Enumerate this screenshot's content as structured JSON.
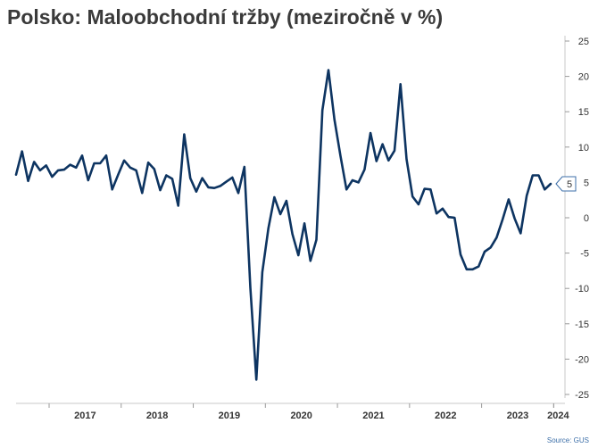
{
  "chart_data": {
    "type": "line",
    "title": "Polsko: Maloobchodní tržby (meziročně v %)",
    "source": "Source: GUS",
    "y_ticks": [
      25,
      20,
      15,
      10,
      5,
      0,
      -5,
      -10,
      -15,
      -20,
      -25
    ],
    "ylim": [
      -25,
      25
    ],
    "x_labels": [
      "2017",
      "2018",
      "2019",
      "2020",
      "2021",
      "2022",
      "2023",
      "2024"
    ],
    "last_value_label": "5",
    "line_color": "#0d3461",
    "grid": false,
    "series": [
      {
        "values": [
          6.1,
          9.4,
          5.2,
          7.9,
          6.7,
          7.4,
          5.8,
          6.7,
          6.8,
          7.5,
          7.1,
          8.8,
          5.3,
          7.7,
          7.7,
          8.8,
          4.0,
          6.1,
          8.1,
          7.1,
          6.7,
          3.5,
          7.8,
          6.9,
          3.9,
          6.0,
          5.5,
          1.7,
          11.8,
          5.6,
          3.7,
          5.6,
          4.3,
          4.2,
          4.5,
          5.1,
          5.7,
          3.5,
          7.2,
          -9.9,
          -22.9,
          -7.7,
          -1.5,
          2.9,
          0.5,
          2.4,
          -2.3,
          -5.3,
          -0.8,
          -6.1,
          -3.1,
          15.2,
          20.9,
          13.9,
          8.8,
          4.0,
          5.3,
          5.0,
          6.8,
          12.0,
          8.0,
          10.4,
          8.1,
          9.5,
          18.9,
          8.3,
          3.0,
          1.9,
          4.1,
          4.0,
          0.6,
          1.3,
          0.1,
          0.0,
          -5.2,
          -7.3,
          -7.3,
          -6.9,
          -4.8,
          -4.2,
          -2.8,
          -0.2,
          2.6,
          -0.1,
          -2.2,
          3.1,
          6.0,
          6.0,
          4.0,
          4.8
        ]
      }
    ]
  }
}
